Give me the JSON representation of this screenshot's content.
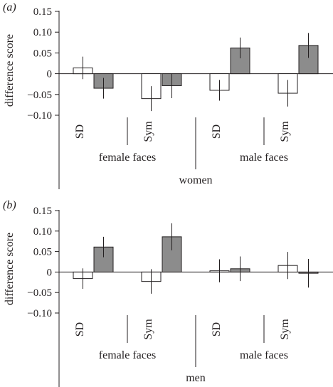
{
  "chart_data": [
    {
      "type": "bar",
      "panel_label": "(a)",
      "ylabel": "difference score",
      "ylim": [
        -0.1,
        0.15
      ],
      "yticks": [
        0.15,
        0.1,
        0.05,
        0,
        -0.05,
        -0.1
      ],
      "ytick_labels": [
        "0.15",
        "0.10",
        "0.05",
        "0",
        "−0.05",
        "−0.10"
      ],
      "conditions": [
        "SD",
        "Sym",
        "SD",
        "Sym"
      ],
      "face_groups": [
        "female faces",
        "male faces"
      ],
      "participant_group": "women",
      "series": [
        {
          "fill": "#ffffff",
          "values": [
            0.014,
            -0.06,
            -0.04,
            -0.047
          ],
          "error": [
            0.027,
            0.03,
            0.025,
            0.032
          ]
        },
        {
          "fill": "#8c8c8c",
          "values": [
            -0.035,
            -0.029,
            0.062,
            0.068
          ],
          "error": [
            0.025,
            0.03,
            0.025,
            0.03
          ]
        }
      ]
    },
    {
      "type": "bar",
      "panel_label": "(b)",
      "ylabel": "difference score",
      "ylim": [
        -0.1,
        0.15
      ],
      "yticks": [
        0.15,
        0.1,
        0.05,
        0,
        -0.05,
        -0.1
      ],
      "ytick_labels": [
        "0.15",
        "0.10",
        "0.05",
        "0",
        "−0.05",
        "−0.10"
      ],
      "conditions": [
        "SD",
        "Sym",
        "SD",
        "Sym"
      ],
      "face_groups": [
        "female faces",
        "male faces"
      ],
      "participant_group": "men",
      "series": [
        {
          "fill": "#ffffff",
          "values": [
            -0.016,
            -0.023,
            0.003,
            0.016
          ],
          "error": [
            0.025,
            0.03,
            0.028,
            0.033
          ]
        },
        {
          "fill": "#8c8c8c",
          "values": [
            0.061,
            0.086,
            0.008,
            -0.003
          ],
          "error": [
            0.025,
            0.033,
            0.03,
            0.035
          ]
        }
      ]
    }
  ]
}
